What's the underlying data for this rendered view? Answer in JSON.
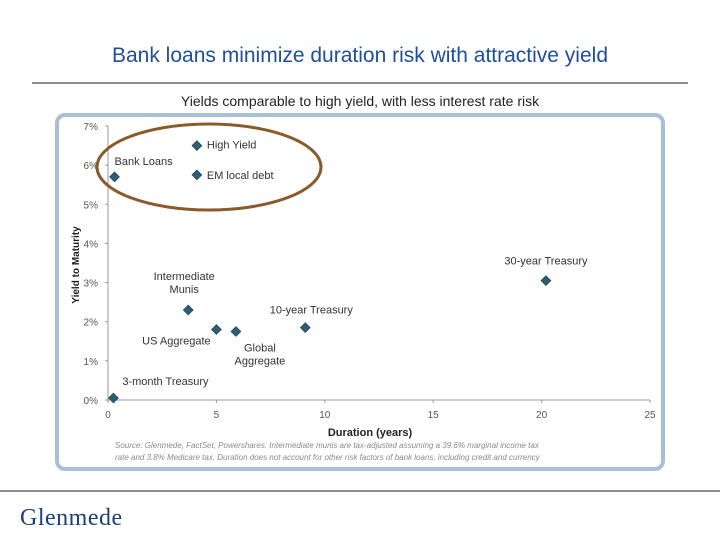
{
  "slide": {
    "title": "Bank loans minimize duration risk with attractive yield",
    "subtitle": "Yields comparable to high yield, with  less interest rate risk",
    "logo": "Glenmede"
  },
  "chart_data": {
    "type": "scatter",
    "xlabel": "Duration (years)",
    "ylabel": "Yield to Maturity",
    "xlim": [
      0,
      25
    ],
    "ylim": [
      0,
      7
    ],
    "x_ticks": [
      "0",
      "5",
      "10",
      "15",
      "20",
      "25"
    ],
    "y_ticks": [
      "0%",
      "1%",
      "2%",
      "3%",
      "4%",
      "5%",
      "6%",
      "7%"
    ],
    "grid": false,
    "points": [
      {
        "label": "High Yield",
        "x": 4.1,
        "y": 6.5
      },
      {
        "label": "EM local debt",
        "x": 4.1,
        "y": 5.75
      },
      {
        "label": "Bank Loans",
        "x": 0.3,
        "y": 5.7
      },
      {
        "label": "30-year Treasury",
        "x": 20.2,
        "y": 3.05
      },
      {
        "label": "Intermediate Munis",
        "x": 3.7,
        "y": 2.3
      },
      {
        "label": "10-year Treasury",
        "x": 9.1,
        "y": 1.85
      },
      {
        "label": "US Aggregate",
        "x": 5.0,
        "y": 1.8
      },
      {
        "label": "Global Aggregate",
        "x": 5.9,
        "y": 1.75
      },
      {
        "label": "3-month Treasury",
        "x": 0.25,
        "y": 0.05
      }
    ],
    "footnote_line1": "Source: Glenmede, FactSet, Powershares. Intermediate munis are tax-adjusted assuming a 39.6% marginal income tax",
    "footnote_line2": "rate and 3.8% Medicare tax. Duration does not account for other risk factors of bank loans, including credit and currency"
  }
}
